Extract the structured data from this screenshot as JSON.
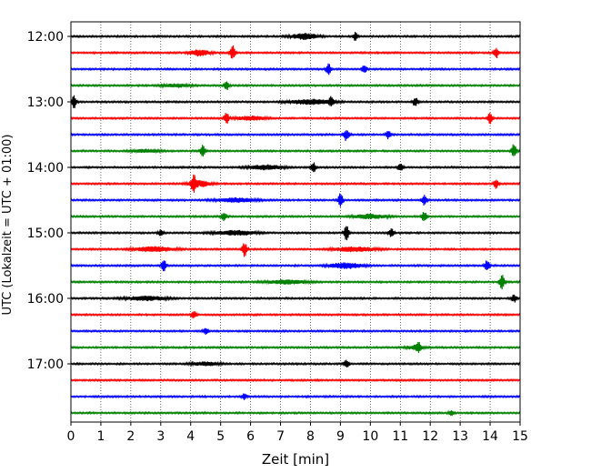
{
  "chart_data": {
    "type": "line",
    "title": "",
    "xlabel": "Zeit  [min]",
    "ylabel": "UTC (Lokalzeit = UTC + 01:00)",
    "xlim": [
      0,
      15
    ],
    "x_ticks": [
      "0",
      "1",
      "2",
      "3",
      "4",
      "5",
      "6",
      "7",
      "8",
      "9",
      "10",
      "11",
      "12",
      "13",
      "14",
      "15"
    ],
    "y_ticks": [
      "12:00",
      "13:00",
      "14:00",
      "15:00",
      "16:00",
      "17:00"
    ],
    "trace_interval_min": 15,
    "grid": {
      "x": true,
      "y": false
    },
    "colors": [
      "#000000",
      "#ff0000",
      "#0000ff",
      "#008000"
    ],
    "traces": [
      {
        "start": "12:00",
        "spikes": [
          {
            "x": 9.5,
            "a": 0.5
          }
        ],
        "bursts": [
          {
            "x": 7.8,
            "w": 1.0,
            "a": 0.55
          }
        ]
      },
      {
        "start": "12:15",
        "spikes": [
          {
            "x": 5.4,
            "a": 1.0
          },
          {
            "x": 14.2,
            "a": 0.7
          }
        ],
        "bursts": [
          {
            "x": 4.3,
            "w": 0.7,
            "a": 0.6
          }
        ]
      },
      {
        "start": "12:30",
        "spikes": [
          {
            "x": 8.6,
            "a": 0.7
          },
          {
            "x": 9.8,
            "a": 0.5
          }
        ],
        "bursts": []
      },
      {
        "start": "12:45",
        "spikes": [
          {
            "x": 5.2,
            "a": 0.6
          }
        ],
        "bursts": [
          {
            "x": 3.5,
            "w": 1.0,
            "a": 0.3
          }
        ]
      },
      {
        "start": "13:00",
        "spikes": [
          {
            "x": 0.1,
            "a": 0.8
          },
          {
            "x": 8.7,
            "a": 0.6
          },
          {
            "x": 11.5,
            "a": 0.6
          }
        ],
        "bursts": [
          {
            "x": 8.0,
            "w": 1.5,
            "a": 0.5
          }
        ]
      },
      {
        "start": "13:15",
        "spikes": [
          {
            "x": 5.2,
            "a": 0.7
          },
          {
            "x": 14.0,
            "a": 0.7
          }
        ],
        "bursts": [
          {
            "x": 6.0,
            "w": 1.0,
            "a": 0.4
          }
        ]
      },
      {
        "start": "13:30",
        "spikes": [
          {
            "x": 9.2,
            "a": 0.8
          },
          {
            "x": 10.6,
            "a": 0.5
          }
        ],
        "bursts": []
      },
      {
        "start": "13:45",
        "spikes": [
          {
            "x": 4.4,
            "a": 0.7
          },
          {
            "x": 14.8,
            "a": 0.9
          }
        ],
        "bursts": [
          {
            "x": 2.5,
            "w": 1.0,
            "a": 0.3
          }
        ]
      },
      {
        "start": "14:00",
        "spikes": [
          {
            "x": 8.1,
            "a": 0.6
          },
          {
            "x": 11.0,
            "a": 0.5
          }
        ],
        "bursts": [
          {
            "x": 6.5,
            "w": 1.2,
            "a": 0.45
          }
        ]
      },
      {
        "start": "14:15",
        "spikes": [
          {
            "x": 4.1,
            "a": 1.0
          },
          {
            "x": 14.2,
            "a": 0.6
          }
        ],
        "bursts": [
          {
            "x": 4.3,
            "w": 0.8,
            "a": 0.6
          }
        ]
      },
      {
        "start": "14:30",
        "spikes": [
          {
            "x": 9.0,
            "a": 0.9
          },
          {
            "x": 11.8,
            "a": 0.6
          }
        ],
        "bursts": [
          {
            "x": 5.5,
            "w": 1.4,
            "a": 0.4
          }
        ]
      },
      {
        "start": "14:45",
        "spikes": [
          {
            "x": 5.1,
            "a": 0.6
          },
          {
            "x": 11.8,
            "a": 0.7
          }
        ],
        "bursts": [
          {
            "x": 10.0,
            "w": 1.2,
            "a": 0.4
          }
        ]
      },
      {
        "start": "15:00",
        "spikes": [
          {
            "x": 3.0,
            "a": 0.4
          },
          {
            "x": 9.2,
            "a": 0.9
          },
          {
            "x": 10.7,
            "a": 0.5
          }
        ],
        "bursts": [
          {
            "x": 5.5,
            "w": 1.5,
            "a": 0.45
          }
        ]
      },
      {
        "start": "15:15",
        "spikes": [
          {
            "x": 5.8,
            "a": 0.9
          }
        ],
        "bursts": [
          {
            "x": 2.8,
            "w": 1.4,
            "a": 0.5
          },
          {
            "x": 9.5,
            "w": 1.5,
            "a": 0.45
          }
        ]
      },
      {
        "start": "15:30",
        "spikes": [
          {
            "x": 3.1,
            "a": 0.8
          },
          {
            "x": 13.9,
            "a": 0.7
          }
        ],
        "bursts": [
          {
            "x": 9.2,
            "w": 1.2,
            "a": 0.55
          }
        ]
      },
      {
        "start": "15:45",
        "spikes": [
          {
            "x": 14.4,
            "a": 1.0
          }
        ],
        "bursts": [
          {
            "x": 7.2,
            "w": 1.5,
            "a": 0.4
          }
        ]
      },
      {
        "start": "16:00",
        "spikes": [
          {
            "x": 14.8,
            "a": 0.5
          }
        ],
        "bursts": [
          {
            "x": 2.5,
            "w": 1.5,
            "a": 0.4
          }
        ]
      },
      {
        "start": "16:15",
        "spikes": [
          {
            "x": 4.1,
            "a": 0.5
          }
        ],
        "bursts": []
      },
      {
        "start": "16:30",
        "spikes": [
          {
            "x": 4.5,
            "a": 0.45
          }
        ],
        "bursts": []
      },
      {
        "start": "16:45",
        "spikes": [
          {
            "x": 11.6,
            "a": 0.5
          }
        ],
        "bursts": [
          {
            "x": 11.5,
            "w": 0.6,
            "a": 0.35
          }
        ]
      },
      {
        "start": "17:00",
        "spikes": [
          {
            "x": 9.2,
            "a": 0.5
          }
        ],
        "bursts": [
          {
            "x": 4.5,
            "w": 1.0,
            "a": 0.35
          }
        ]
      },
      {
        "start": "17:15",
        "spikes": [],
        "bursts": []
      },
      {
        "start": "17:30",
        "spikes": [
          {
            "x": 5.8,
            "a": 0.35
          }
        ],
        "bursts": []
      },
      {
        "start": "17:45",
        "spikes": [
          {
            "x": 12.7,
            "a": 0.3
          }
        ],
        "bursts": []
      }
    ]
  }
}
